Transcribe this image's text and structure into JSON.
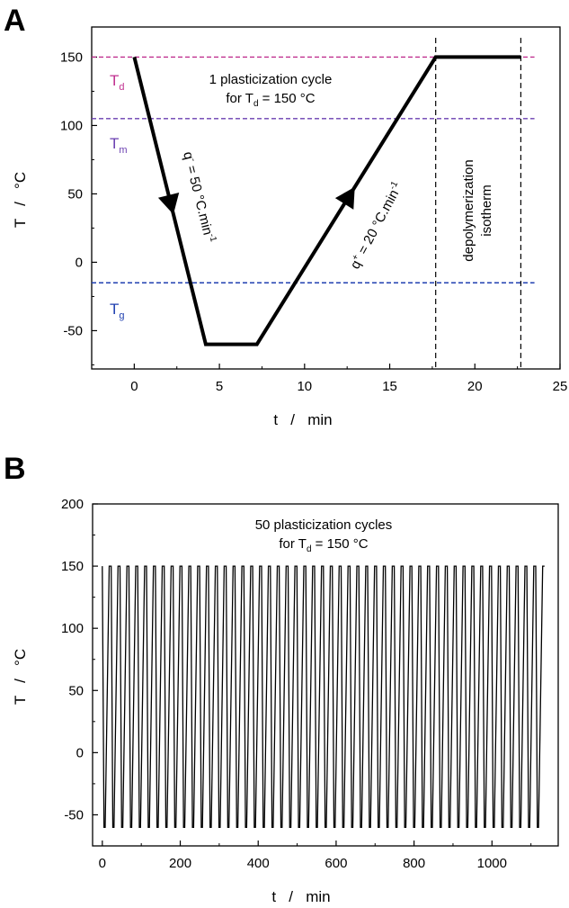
{
  "figure": {
    "panels": [
      {
        "letter": "A",
        "xlabel": "t   /   min",
        "ylabel": "T   /   °C",
        "xticks": [
          "0",
          "5",
          "10",
          "15",
          "20",
          "25"
        ],
        "yticks": [
          "-50",
          "0",
          "50",
          "100",
          "150"
        ],
        "annotation_line1": "1 plasticization cycle",
        "annotation_line2_prefix": "for T",
        "annotation_line2_sub": "d",
        "annotation_line2_suffix": " = 150 °C",
        "td": {
          "symbol": "T",
          "sub": "d"
        },
        "tm": {
          "symbol": "T",
          "sub": "m"
        },
        "tg": {
          "symbol": "T",
          "sub": "g"
        },
        "cool_label": {
          "q": "q",
          "sup": "-",
          "rest": " = 50 °C.min",
          "exp": "-1"
        },
        "heat_label": {
          "q": "q",
          "sup": "+",
          "rest": " = 20 °C.min",
          "exp": "-1"
        },
        "iso_line1": "depolymerization",
        "iso_line2": "isotherm"
      },
      {
        "letter": "B",
        "xlabel": "t   /   min",
        "ylabel": "T   /   °C",
        "xticks": [
          "0",
          "200",
          "400",
          "600",
          "800",
          "1000"
        ],
        "yticks": [
          "-50",
          "0",
          "50",
          "100",
          "150",
          "200"
        ],
        "annotation_line1": "50 plasticization cycles",
        "annotation_line2_prefix": "for T",
        "annotation_line2_sub": "d",
        "annotation_line2_suffix": " = 150 °C"
      }
    ]
  },
  "chart_data": [
    {
      "type": "line",
      "xlim": [
        -2.5,
        25
      ],
      "ylim": [
        -78,
        172
      ],
      "grid": false,
      "series": [
        {
          "x": [
            0,
            4.2,
            7.2,
            17.7,
            22.7
          ],
          "y": [
            150,
            -60,
            -60,
            150,
            150
          ],
          "color": "#000000"
        }
      ],
      "reference_lines": [
        {
          "axis": "y",
          "value": 150,
          "color": "#c0308f"
        },
        {
          "axis": "y",
          "value": 105,
          "color": "#6a3fb0"
        },
        {
          "axis": "y",
          "value": -15,
          "color": "#2040b0"
        },
        {
          "axis": "x",
          "value": 17.7,
          "color": "#000000"
        },
        {
          "axis": "x",
          "value": 22.7,
          "color": "#000000"
        }
      ],
      "colors": {
        "td": "#c0308f",
        "tm": "#6a3fb0",
        "tg": "#2040b0"
      }
    },
    {
      "type": "line",
      "xlim": [
        -25,
        1170
      ],
      "ylim": [
        -75,
        200
      ],
      "grid": false,
      "cycles": 50,
      "cycle_period_min": 22.7,
      "cycle_profile": {
        "x": [
          0,
          4.2,
          7.2,
          17.7,
          22.7
        ],
        "y": [
          150,
          -60,
          -60,
          150,
          150
        ]
      },
      "color": "#000000"
    }
  ]
}
